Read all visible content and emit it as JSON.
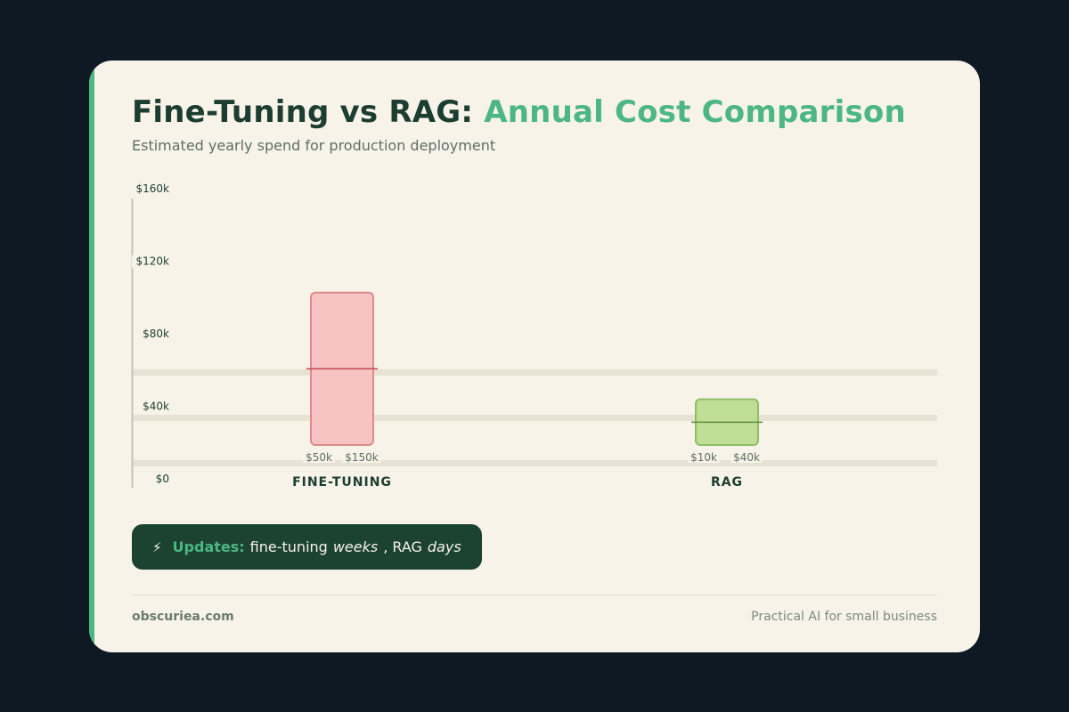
{
  "title": {
    "main": "Fine-Tuning vs RAG:",
    "highlight": "Annual Cost Comparison"
  },
  "subtitle": "Estimated yearly spend for production deployment",
  "chart_data": {
    "type": "bar",
    "subtype": "floating-range",
    "categories": [
      "FINE-TUNING",
      "RAG"
    ],
    "series": [
      {
        "values": [
          [
            50,
            150
          ],
          [
            10,
            40
          ]
        ]
      }
    ],
    "range_labels": [
      [
        "$50k",
        "$150k"
      ],
      [
        "$10k",
        "$40k"
      ]
    ],
    "midpoint_markers": true,
    "y_ticks": [
      "$0",
      "$40k",
      "$80k",
      "$120k",
      "$160k"
    ],
    "ylim": [
      0,
      160
    ],
    "units": "thousand USD",
    "colors": {
      "fine_tuning_fill": "#f7c3c3",
      "fine_tuning_stroke": "#dc8b8b",
      "fine_tuning_marker": "#c0454e",
      "rag_fill": "#c1de97",
      "rag_stroke": "#8ebd63",
      "rag_marker": "#5b8a3c",
      "band": "#e7e2d4",
      "axis": "#c8c2b2"
    }
  },
  "note": {
    "icon": "lightning-icon",
    "glyph": "⚡",
    "lead": "Updates:",
    "text1": "fine-tuning",
    "em1": "weeks",
    "text2": ", RAG",
    "em2": "days"
  },
  "footer": {
    "brand": "obscuriea.com",
    "tagline": "Practical AI for small business"
  },
  "colors": {
    "page_bg": "#0f1923",
    "card_bg": "#f7f3e9",
    "accent": "#4cb782",
    "dark_green": "#1c4332"
  }
}
